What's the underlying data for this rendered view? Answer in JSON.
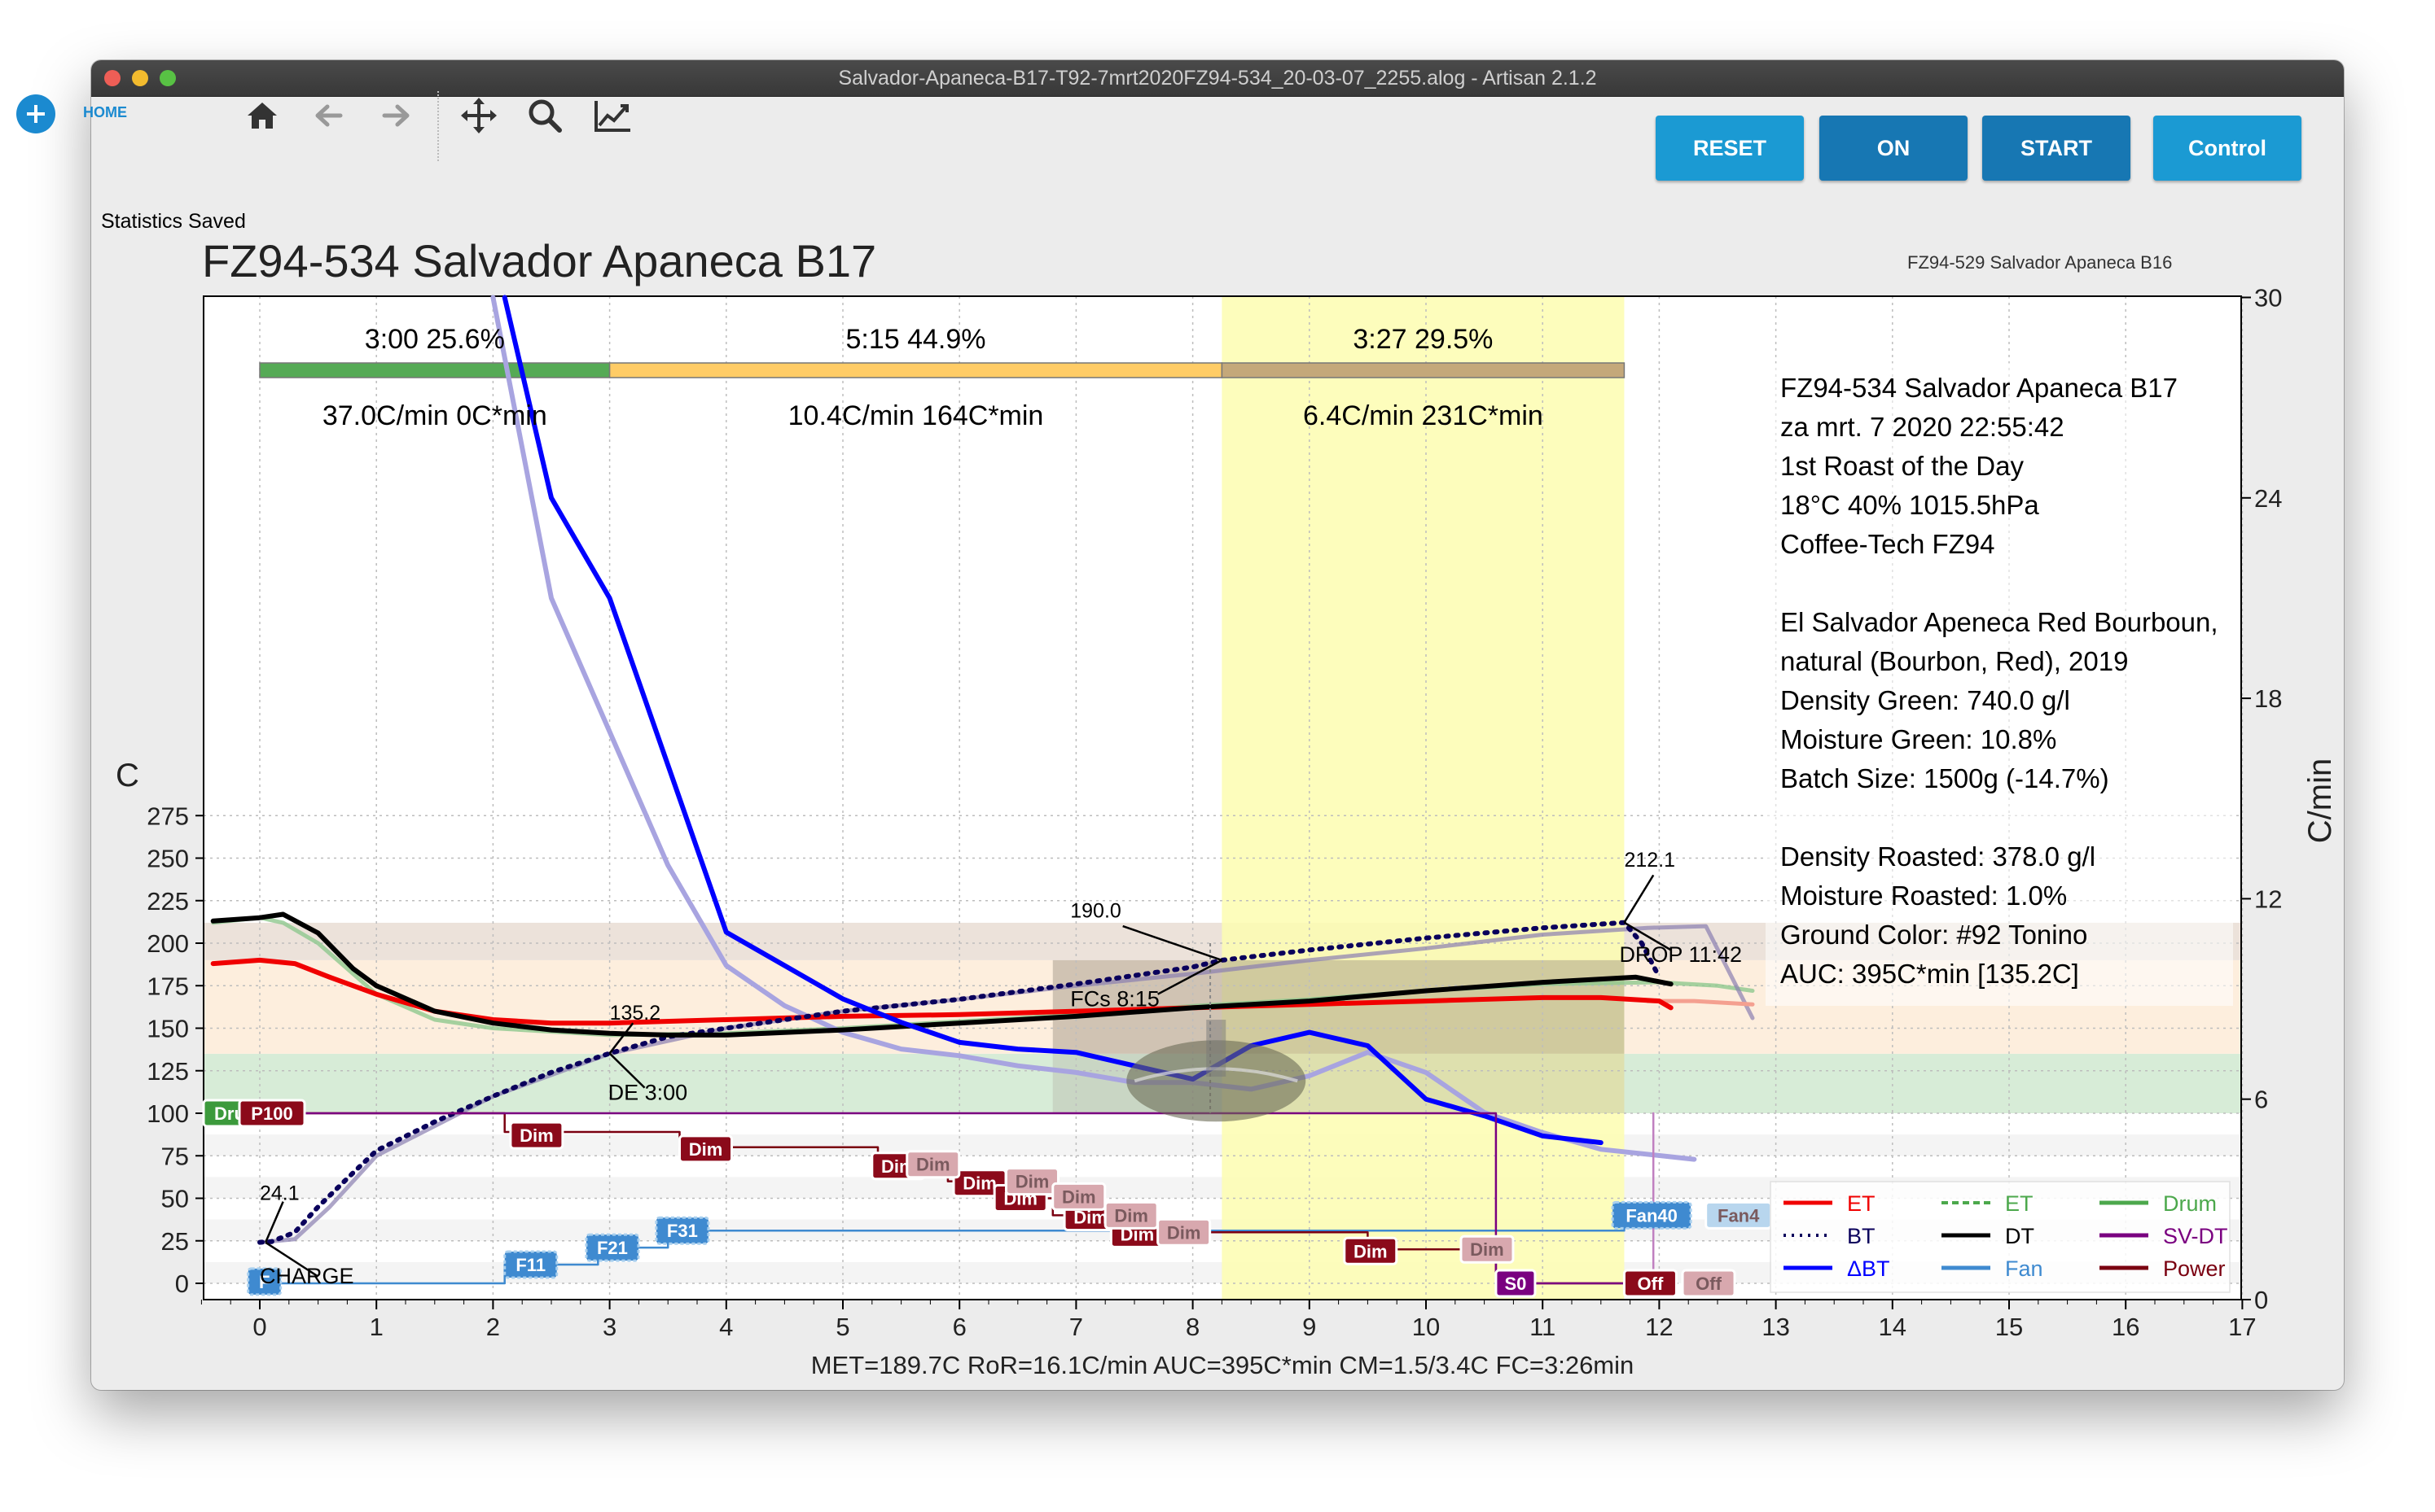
{
  "window": {
    "title": "Salvador-Apaneca-B17-T92-7mrt2020FZ94-534_20-03-07_2255.alog - Artisan 2.1.2"
  },
  "toolbar": {
    "home_label": "HOME",
    "status": "Statistics Saved"
  },
  "buttons": {
    "reset": "RESET",
    "on": "ON",
    "start": "START",
    "control": "Control"
  },
  "colors": {
    "et": "#f00000",
    "bt": "#0a005c",
    "delta_bt": "#0000ff",
    "dt": "#000000",
    "drum": "#4ca84c",
    "fan": "#3f8ad0",
    "power": "#7a0010",
    "svdt": "#7a0080",
    "button": "#1b8fcb",
    "dry_phase": "#55aa55",
    "maillard_phase": "#ffcc66",
    "dev_phase": "#c4a87a",
    "dev_band": "#fdfdb0"
  },
  "chart": {
    "title": "FZ94-534 Salvador Apaneca B17",
    "background_title": "FZ94-529 Salvador Apaneca B16",
    "y_left_label": "C",
    "y_right_label": "C/min",
    "y_left_ticks": [
      "275",
      "250",
      "225",
      "200",
      "175",
      "150",
      "125",
      "100",
      "75",
      "50",
      "25",
      "0"
    ],
    "y_right_ticks": [
      "30",
      "24",
      "18",
      "12",
      "6",
      "0"
    ],
    "x_ticks": [
      "0",
      "1",
      "2",
      "3",
      "4",
      "5",
      "6",
      "7",
      "8",
      "9",
      "10",
      "11",
      "12",
      "13",
      "14",
      "15",
      "16",
      "17"
    ],
    "phases": [
      {
        "time": "3:00  25.6%",
        "stats": "37.0C/min  0C*min"
      },
      {
        "time": "5:15  44.9%",
        "stats": "10.4C/min  164C*min"
      },
      {
        "time": "3:27  29.5%",
        "stats": "6.4C/min  231C*min"
      }
    ],
    "annotations": {
      "charge": "CHARGE",
      "charge_temp": "24.1",
      "de": "DE 3:00",
      "de_temp": "135.2",
      "fcs": "FCs 8:15",
      "fcs_temp": "190.0",
      "drop": "DROP 11:42",
      "drop_temp": "212.1"
    },
    "info_lines": [
      "FZ94-534 Salvador Apaneca B17",
      "za mrt. 7 2020 22:55:42",
      "1st Roast of the Day",
      "18°C  40%  1015.5hPa",
      "Coffee-Tech FZ94",
      "",
      "El Salvador Apeneca Red Bourboun,",
      "  natural (Bourbon, Red), 2019",
      "Density Green: 740.0 g/l",
      "Moisture Green: 10.8%",
      "Batch Size: 1500g (-14.7%)",
      "",
      "Density Roasted: 378.0 g/l",
      "Moisture Roasted: 1.0%",
      "Ground Color: #92 Tonino",
      "AUC: 395C*min [135.2C]"
    ],
    "event_tags": [
      {
        "label": "Dru",
        "kind": "drum"
      },
      {
        "label": "P100",
        "kind": "power"
      },
      {
        "label": "Dim",
        "kind": "power"
      },
      {
        "label": "Dim",
        "kind": "power"
      },
      {
        "label": "Dim",
        "kind": "power"
      },
      {
        "label": "Dim",
        "kind": "power"
      },
      {
        "label": "Dim",
        "kind": "power"
      },
      {
        "label": "Dim",
        "kind": "power"
      },
      {
        "label": "Dim",
        "kind": "power"
      },
      {
        "label": "Dim",
        "kind": "power"
      },
      {
        "label": "Off",
        "kind": "power"
      },
      {
        "label": "S0",
        "kind": "svdt"
      },
      {
        "label": "F11",
        "kind": "fan"
      },
      {
        "label": "F21",
        "kind": "fan"
      },
      {
        "label": "F31",
        "kind": "fan"
      },
      {
        "label": "Fan40",
        "kind": "fan"
      },
      {
        "label": "F",
        "kind": "fan"
      },
      {
        "label": "Dim",
        "kind": "bg"
      },
      {
        "label": "Dim",
        "kind": "bg"
      },
      {
        "label": "Dim",
        "kind": "bg"
      },
      {
        "label": "Dim",
        "kind": "bg"
      },
      {
        "label": "Dim",
        "kind": "bg"
      },
      {
        "label": "Dim",
        "kind": "bg"
      },
      {
        "label": "Off",
        "kind": "bg"
      },
      {
        "label": "Fan4",
        "kind": "bg"
      }
    ],
    "legend": [
      {
        "label": "ET",
        "color": "#f00000",
        "style": "solid"
      },
      {
        "label": "ET",
        "color": "#4ca84c",
        "style": "dash"
      },
      {
        "label": "Drum",
        "color": "#4ca84c",
        "style": "solid"
      },
      {
        "label": "BT",
        "color": "#0a005c",
        "style": "dot"
      },
      {
        "label": "DT",
        "color": "#000000",
        "style": "solid"
      },
      {
        "label": "SV-DT",
        "color": "#7a0080",
        "style": "solid"
      },
      {
        "label": "ΔBT",
        "color": "#0000ff",
        "style": "solid"
      },
      {
        "label": "Fan",
        "color": "#3f8ad0",
        "style": "solid"
      },
      {
        "label": "Power",
        "color": "#7a0010",
        "style": "solid"
      }
    ],
    "footer": "MET=189.7C   RoR=16.1C/min   AUC=395C*min   CM=1.5/3.4C   FC=3:26min"
  },
  "chart_data": {
    "type": "line",
    "title": "FZ94-534 Salvador Apaneca B17",
    "xlabel": "",
    "ylabel": "C",
    "y2label": "C/min",
    "xlim": [
      -0.5,
      17
    ],
    "ylim": [
      -5,
      280
    ],
    "y2lim": [
      0,
      30
    ],
    "grid": true,
    "legend_position": "bottom-right",
    "series": [
      {
        "name": "ET",
        "axis": "left",
        "x": [
          -0.4,
          0,
          0.3,
          0.6,
          1,
          1.5,
          2,
          2.5,
          3,
          4,
          5,
          6,
          7,
          8,
          9,
          10,
          11,
          11.5,
          12,
          12.1
        ],
        "y": [
          188,
          190,
          188,
          180,
          170,
          160,
          155,
          153,
          153,
          155,
          157,
          158,
          160,
          162,
          164,
          166,
          168,
          168,
          166,
          162
        ]
      },
      {
        "name": "BT",
        "axis": "left",
        "x": [
          0,
          0.1,
          0.3,
          0.5,
          0.8,
          1,
          1.5,
          2,
          2.5,
          3,
          3.5,
          4,
          5,
          6,
          7,
          8,
          8.25,
          9,
          10,
          11,
          11.7,
          11.85,
          12
        ],
        "y": [
          24.1,
          24.5,
          30,
          45,
          65,
          78,
          95,
          110,
          124,
          135.2,
          145,
          150,
          160,
          167,
          176,
          186,
          190,
          196,
          203,
          209,
          212.1,
          200,
          180
        ]
      },
      {
        "name": "DT",
        "axis": "left",
        "x": [
          -0.4,
          0,
          0.2,
          0.5,
          0.8,
          1,
          1.5,
          2,
          2.5,
          3,
          3.5,
          4,
          5,
          6,
          7,
          8,
          9,
          10,
          11,
          11.8,
          12.1
        ],
        "y": [
          213,
          215,
          217,
          206,
          185,
          175,
          160,
          153,
          149,
          147,
          146,
          146,
          149,
          153,
          157,
          162,
          166,
          172,
          177,
          180,
          176
        ]
      },
      {
        "name": "ΔBT",
        "axis": "right",
        "x": [
          2.1,
          2.5,
          3,
          3.5,
          4,
          4.5,
          5,
          5.5,
          6,
          6.5,
          7,
          7.5,
          8,
          8.5,
          9,
          9.5,
          10,
          10.5,
          11,
          11.5
        ],
        "y": [
          30,
          24,
          21,
          16,
          11,
          10,
          9,
          8.3,
          7.7,
          7.5,
          7.4,
          7,
          6.6,
          7.6,
          8,
          7.6,
          6,
          5.5,
          4.9,
          4.7
        ]
      },
      {
        "name": "Fan",
        "axis": "left",
        "x": [
          0,
          2.1,
          2.1,
          2.9,
          2.9,
          3.5,
          3.5,
          10.5,
          11.7,
          11.7,
          12
        ],
        "y": [
          0,
          0,
          11,
          11,
          21,
          21,
          31,
          31,
          31,
          40,
          40
        ]
      },
      {
        "name": "Power",
        "axis": "left",
        "x": [
          0,
          2.1,
          2.1,
          3.6,
          3.6,
          5.3,
          5.3,
          5.9,
          5.9,
          6.3,
          6.3,
          6.8,
          6.8,
          7.3,
          7.3,
          9.5,
          9.5,
          10.6,
          10.6,
          11.7
        ],
        "y": [
          100,
          100,
          89,
          89,
          80,
          80,
          70,
          70,
          60,
          60,
          50,
          50,
          40,
          40,
          30,
          30,
          20,
          20,
          0,
          0
        ]
      }
    ]
  }
}
